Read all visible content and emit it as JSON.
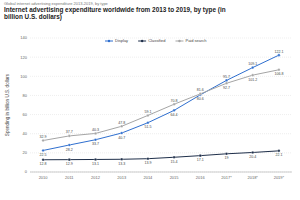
{
  "chart_data": {
    "type": "line",
    "subtitle": "Global internet advertising expenditure 2013-2019, by type",
    "title": "Internet advertising expenditure worldwide from 2013 to 2019, by type (in billion U.S. dollars)",
    "y_label": "Spending in billion U.S. dollars",
    "categories": [
      "2010",
      "2011",
      "2012",
      "2013",
      "2014",
      "2015",
      "2016",
      "2017*",
      "2018*",
      "2019*"
    ],
    "series": [
      {
        "name": "Display",
        "color": "#2f6fcf",
        "marker": "circle",
        "values": [
          22.5,
          28.2,
          33.7,
          40.7,
          51.5,
          64.4,
          80.6,
          95.7,
          109.1,
          122.1
        ]
      },
      {
        "name": "Classified",
        "color": "#1f2f4a",
        "marker": "circle",
        "values": [
          12.8,
          12.9,
          13.1,
          13.3,
          13.9,
          15.4,
          17.1,
          19.0,
          20.4,
          22.1
        ]
      },
      {
        "name": "Paid search",
        "color": "#a5a5a5",
        "marker": "circle",
        "values": [
          32.9,
          37.7,
          40.3,
          47.8,
          59.1,
          70.8,
          81.6,
          92.7,
          101.2,
          106.8
        ]
      }
    ],
    "ylim": [
      0,
      140
    ],
    "yticks": [
      0,
      20,
      40,
      60,
      80,
      100,
      120,
      140
    ],
    "grid": true,
    "legend": "top",
    "data_labels": true
  }
}
